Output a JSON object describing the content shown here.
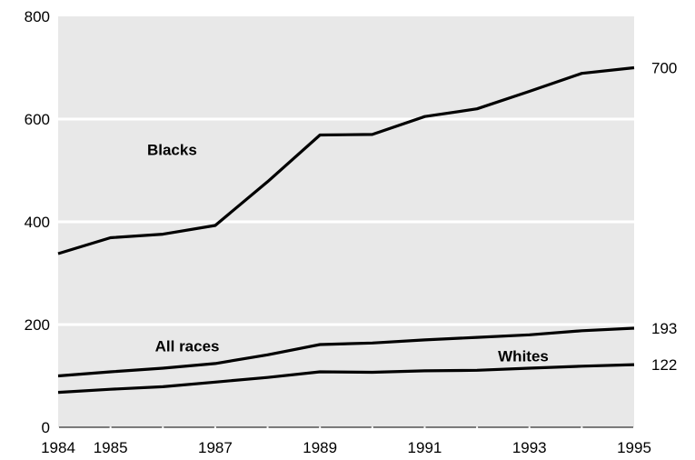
{
  "chart_data": {
    "type": "line",
    "title": "",
    "xlabel": "",
    "ylabel": "",
    "xlim": [
      1984,
      1995
    ],
    "ylim": [
      0,
      800
    ],
    "grid": true,
    "y_ticks": [
      0,
      200,
      400,
      600,
      800
    ],
    "x_ticks": [
      1984,
      1985,
      1987,
      1989,
      1991,
      1993,
      1995
    ],
    "x_tick_labels": [
      "1984",
      "1985",
      "1987",
      "1989",
      "1991",
      "1993",
      "1995"
    ],
    "y_tick_labels": [
      "0",
      "200",
      "400",
      "600",
      "800"
    ],
    "x": [
      1984,
      1985,
      1986,
      1987,
      1988,
      1989,
      1990,
      1991,
      1992,
      1993,
      1994,
      1995
    ],
    "series": [
      {
        "name": "Blacks",
        "values": [
          338,
          369,
          376,
          393,
          478,
          569,
          570,
          605,
          620,
          654,
          689,
          700
        ],
        "end_label": "700"
      },
      {
        "name": "All races",
        "values": [
          100,
          108,
          115,
          124,
          141,
          161,
          164,
          170,
          175,
          180,
          188,
          193
        ],
        "end_label": "193"
      },
      {
        "name": "Whites",
        "values": [
          68,
          74,
          79,
          88,
          97,
          108,
          107,
          110,
          111,
          115,
          119,
          122
        ],
        "end_label": "122"
      }
    ],
    "colors": {
      "plot_background": "#e8e8e8",
      "gridline": "#ffffff",
      "line": "#000000"
    }
  }
}
